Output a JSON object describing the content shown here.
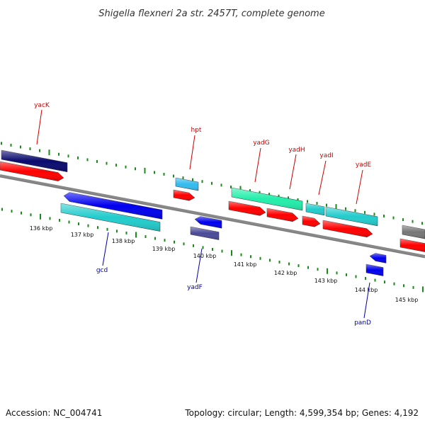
{
  "title": "Shigella flexneri 2a str. 2457T, complete genome",
  "footer": {
    "accession": "Accession: NC_004741",
    "summary": "Topology: circular; Length: 4,599,354 bp; Genes: 4,192"
  },
  "colors": {
    "backbone": "#888888",
    "tick": "#1a8a1a",
    "label_top": "#cc0000",
    "label_bottom": "#0000aa",
    "navy": "#0a0a6e",
    "red": "#ff0000",
    "blue": "#0000ee",
    "cyan": "#22cccc",
    "sky": "#33bbee",
    "mint": "#22eeaa",
    "slate": "#4a4a99",
    "grey": "#777777"
  },
  "scale_labels": [
    "136 kbp",
    "137 kbp",
    "138 kbp",
    "139 kbp",
    "140 kbp",
    "141 kbp",
    "142 kbp",
    "143 kbp",
    "144 kbp",
    "145 kbp"
  ],
  "gene_labels": [
    {
      "name": "yacK",
      "strand": "top"
    },
    {
      "name": "hpt",
      "strand": "top"
    },
    {
      "name": "yadG",
      "strand": "top"
    },
    {
      "name": "yadH",
      "strand": "top"
    },
    {
      "name": "yadI",
      "strand": "top"
    },
    {
      "name": "yadE",
      "strand": "top"
    },
    {
      "name": "gcd",
      "strand": "bottom"
    },
    {
      "name": "yadF",
      "strand": "bottom"
    },
    {
      "name": "panD",
      "strand": "bottom"
    }
  ]
}
